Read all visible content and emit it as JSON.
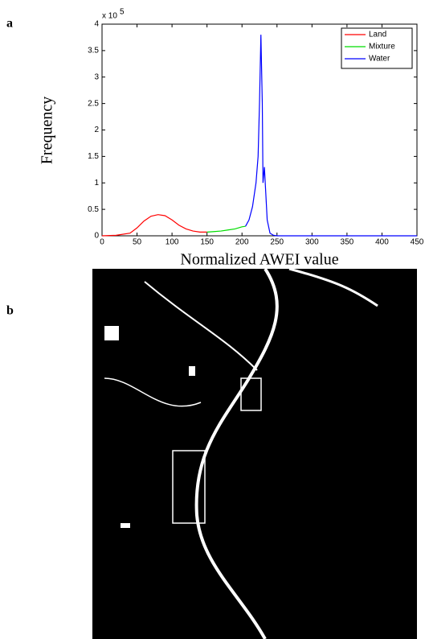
{
  "chart_data": {
    "type": "line",
    "panel_label": "a",
    "xlabel": "Normalized AWEI value",
    "ylabel": "Frequency",
    "y_scale_label": "x 10",
    "y_scale_exponent": "5",
    "xlim": [
      0,
      450
    ],
    "xticks": [
      0,
      50,
      100,
      150,
      200,
      250,
      300,
      350,
      400,
      450
    ],
    "ylim": [
      0,
      4
    ],
    "yticks": [
      0,
      0.5,
      1,
      1.5,
      2,
      2.5,
      3,
      3.5,
      4
    ],
    "legend": "upper right",
    "series": [
      {
        "name": "Land",
        "color": "#ff0000",
        "x": [
          0,
          20,
          40,
          50,
          60,
          70,
          80,
          90,
          100,
          110,
          120,
          130,
          140,
          150
        ],
        "values": [
          0,
          0.01,
          0.05,
          0.15,
          0.28,
          0.37,
          0.4,
          0.38,
          0.3,
          0.2,
          0.13,
          0.09,
          0.07,
          0.07
        ]
      },
      {
        "name": "Mixture",
        "color": "#00dd00",
        "x": [
          150,
          160,
          170,
          180,
          190,
          200,
          205
        ],
        "values": [
          0.07,
          0.08,
          0.09,
          0.11,
          0.13,
          0.17,
          0.18
        ]
      },
      {
        "name": "Water",
        "color": "#0000ff",
        "x": [
          205,
          210,
          215,
          220,
          223,
          225,
          227,
          229,
          230,
          232,
          234,
          236,
          240,
          245,
          250,
          300,
          450
        ],
        "values": [
          0.18,
          0.3,
          0.55,
          1.0,
          1.5,
          2.5,
          3.8,
          2.5,
          1.0,
          1.3,
          0.8,
          0.3,
          0.05,
          0.01,
          0,
          0,
          0
        ]
      }
    ]
  },
  "image_panel": {
    "panel_label": "b"
  }
}
